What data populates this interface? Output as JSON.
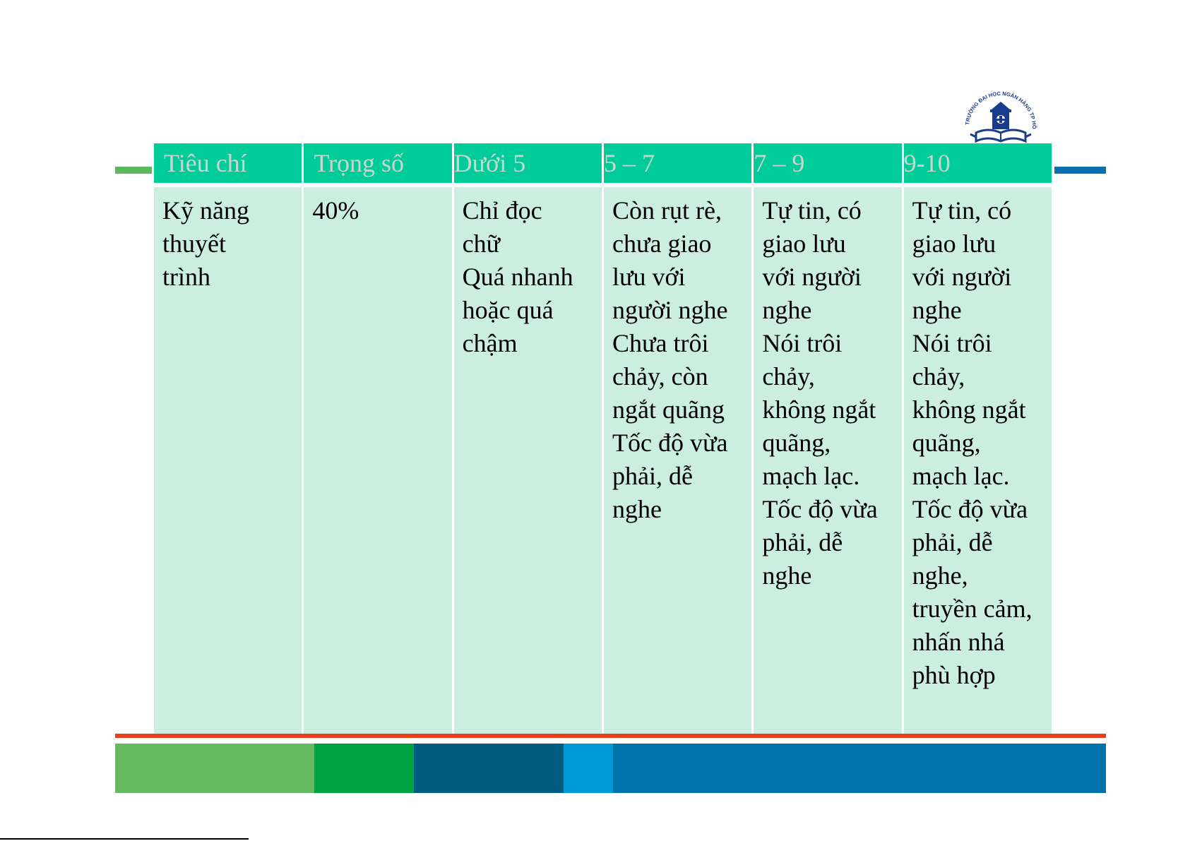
{
  "table": {
    "headers": [
      "Tiêu chí",
      "Trọng số",
      "Dưới 5",
      "5 – 7",
      "7 – 9",
      "9-10"
    ],
    "row": {
      "criterion": [
        "Kỹ năng",
        "thuyết",
        "trình"
      ],
      "weight": [
        "40%"
      ],
      "below5": [
        "Chỉ đọc",
        "chữ",
        "Quá nhanh",
        "hoặc quá",
        "chậm"
      ],
      "r5_7": [
        "Còn rụt rè,",
        "chưa giao",
        "lưu với",
        "người nghe",
        "Chưa trôi",
        "chảy, còn",
        "ngắt quãng",
        "Tốc độ vừa",
        "phải, dễ",
        "nghe"
      ],
      "r7_9": [
        "Tự tin, có",
        "giao lưu",
        "với người",
        "nghe",
        "Nói trôi",
        "chảy,",
        "không ngắt",
        "quãng,",
        "mạch lạc.",
        "Tốc độ vừa",
        "phải, dễ",
        "nghe"
      ],
      "r9_10": [
        "Tự tin, có",
        "giao lưu",
        "với người",
        "nghe",
        "Nói trôi",
        "chảy,",
        "không ngắt",
        "quãng,",
        "mạch lạc.",
        "Tốc độ vừa",
        "phải, dễ",
        "nghe,",
        "truyền cảm,",
        "nhấn nhá",
        "phù hợp"
      ]
    }
  },
  "logo": {
    "ring_text": "TRƯỜNG ĐẠI HỌC NGÂN HÀNG TP HỒ CHÍ MINH",
    "icon": "university-seal-icon"
  },
  "colors": {
    "header_bg": "#00cc99",
    "header_text": "#c9d6cf",
    "cell_bg": "#cceee0",
    "accent_green": "#5cb85c",
    "accent_blue": "#0a6fae",
    "red_line": "#e8401c",
    "footer_blocks": [
      "#66bb62",
      "#00a442",
      "#005b80",
      "#009bd6",
      "#0073aa"
    ]
  }
}
